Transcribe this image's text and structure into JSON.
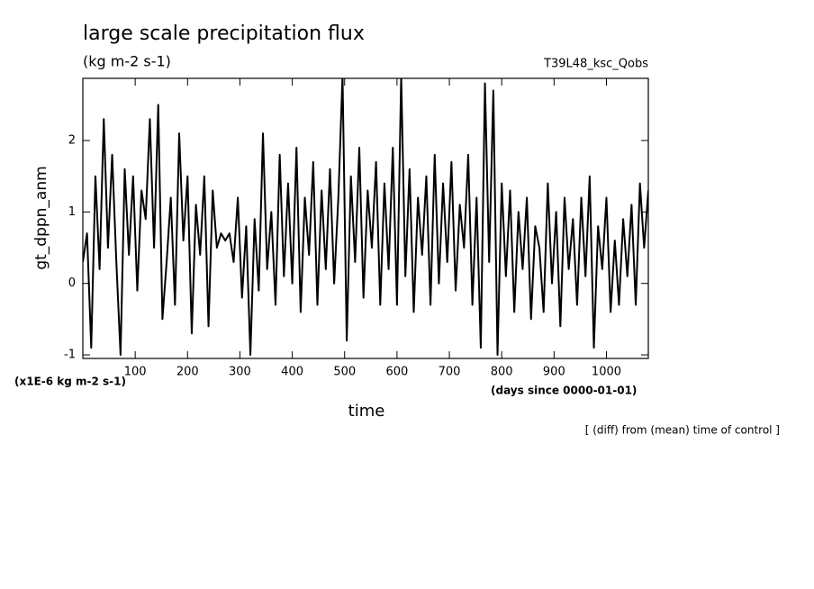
{
  "chart_data": {
    "type": "line",
    "title": "large scale precipitation flux",
    "subtitle": "(kg m-2 s-1)",
    "run_label": "T39L48_ksc_Qobs",
    "y_label": "gt_dppn_anm",
    "y_unit": "(x1E-6 kg m-2 s-1)",
    "x_label": "time",
    "x_unit": "(days since 0000-01-01)",
    "annotation": "[ (diff) from (mean) time of control ]",
    "xlim": [
      0,
      1080
    ],
    "xticks": [
      100,
      200,
      300,
      400,
      500,
      600,
      700,
      800,
      900,
      1000
    ],
    "ylim": [
      -1.05,
      2.87
    ],
    "yticks": [
      -1,
      0,
      1,
      2
    ],
    "x": [
      0,
      8,
      16,
      24,
      32,
      40,
      48,
      56,
      64,
      72,
      80,
      88,
      96,
      104,
      112,
      120,
      128,
      136,
      144,
      152,
      160,
      168,
      176,
      184,
      192,
      200,
      208,
      216,
      224,
      232,
      240,
      248,
      256,
      264,
      272,
      280,
      288,
      296,
      304,
      312,
      320,
      328,
      336,
      344,
      352,
      360,
      368,
      376,
      384,
      392,
      400,
      408,
      416,
      424,
      432,
      440,
      448,
      456,
      464,
      472,
      480,
      488,
      496,
      504,
      512,
      520,
      528,
      536,
      544,
      552,
      560,
      568,
      576,
      584,
      592,
      600,
      608,
      616,
      624,
      632,
      640,
      648,
      656,
      664,
      672,
      680,
      688,
      696,
      704,
      712,
      720,
      728,
      736,
      744,
      752,
      760,
      768,
      776,
      784,
      792,
      800,
      808,
      816,
      824,
      832,
      840,
      848,
      856,
      864,
      872,
      880,
      888,
      896,
      904,
      912,
      920,
      928,
      936,
      944,
      952,
      960,
      968,
      976,
      984,
      992,
      1000,
      1008,
      1016,
      1024,
      1032,
      1040,
      1048,
      1056,
      1064,
      1072,
      1080
    ],
    "series": [
      {
        "name": "gt_dppn_anm",
        "color": "#000000",
        "values": [
          0.3,
          0.7,
          -0.9,
          1.5,
          0.2,
          2.3,
          0.5,
          1.8,
          0.3,
          -1.0,
          1.6,
          0.4,
          1.5,
          -0.1,
          1.3,
          0.9,
          2.3,
          0.5,
          2.5,
          -0.5,
          0.3,
          1.2,
          -0.3,
          2.1,
          0.6,
          1.5,
          -0.7,
          1.1,
          0.4,
          1.5,
          -0.6,
          1.3,
          0.5,
          0.7,
          0.6,
          0.7,
          0.3,
          1.2,
          -0.2,
          0.8,
          -1.0,
          0.9,
          -0.1,
          2.1,
          0.2,
          1.0,
          -0.3,
          1.8,
          0.1,
          1.4,
          0.0,
          1.9,
          -0.4,
          1.2,
          0.4,
          1.7,
          -0.3,
          1.3,
          0.2,
          1.6,
          0.0,
          1.2,
          2.9,
          -0.8,
          1.5,
          0.3,
          1.9,
          -0.2,
          1.3,
          0.5,
          1.7,
          -0.3,
          1.4,
          0.2,
          1.9,
          -0.3,
          2.9,
          0.1,
          1.6,
          -0.4,
          1.2,
          0.4,
          1.5,
          -0.3,
          1.8,
          0.0,
          1.4,
          0.3,
          1.7,
          -0.1,
          1.1,
          0.5,
          1.8,
          -0.3,
          1.2,
          -0.9,
          2.8,
          0.3,
          2.7,
          -1.0,
          1.4,
          0.1,
          1.3,
          -0.4,
          1.0,
          0.2,
          1.2,
          -0.5,
          0.8,
          0.5,
          -0.4,
          1.4,
          0.0,
          1.0,
          -0.6,
          1.2,
          0.2,
          0.9,
          -0.3,
          1.2,
          0.1,
          1.5,
          -0.9,
          0.8,
          0.2,
          1.2,
          -0.4,
          0.6,
          -0.3,
          0.9,
          0.1,
          1.1,
          -0.3,
          1.4,
          0.5,
          1.3
        ]
      }
    ]
  }
}
